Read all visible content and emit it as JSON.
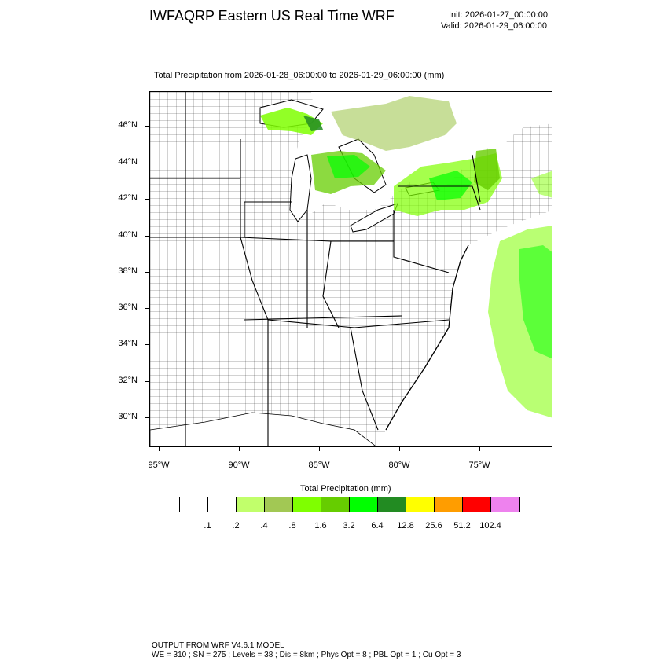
{
  "header": {
    "title": "IWFAQRP Eastern US Real Time WRF",
    "init": "Init: 2026-01-27_00:00:00",
    "valid": "Valid: 2026-01-29_06:00:00"
  },
  "map": {
    "subtitle": "Total Precipitation from 2026-01-28_06:00:00 to 2026-01-29_06:00:00   (mm)",
    "lat_labels": [
      "46°N",
      "44°N",
      "42°N",
      "40°N",
      "38°N",
      "36°N",
      "34°N",
      "32°N",
      "30°N"
    ],
    "lon_labels": [
      "95°W",
      "90°W",
      "85°W",
      "80°W",
      "75°W"
    ],
    "precip_regions": [
      "Upper Peninsula of Michigan",
      "Northern Lower Michigan",
      "Lake Ontario / Upstate New York",
      "Vermont / New Hampshire",
      "Atlantic Ocean off Mid-Atlantic coast"
    ]
  },
  "colorbar": {
    "title": "Total Precipitation  (mm)",
    "labels": [
      ".1",
      ".2",
      ".4",
      ".8",
      "1.6",
      "3.2",
      "6.4",
      "12.8",
      "25.6",
      "51.2",
      "102.4"
    ],
    "colors": [
      "#ffffff",
      "#ffffff",
      "#c1ff6b",
      "#a2c854",
      "#7fff00",
      "#66cd00",
      "#00ff00",
      "#228b22",
      "#ffff00",
      "#ff9d00",
      "#ff0000",
      "#ee82ee"
    ]
  },
  "footer": {
    "line1": "OUTPUT FROM WRF V4.6.1 MODEL",
    "line2": "WE = 310 ; SN = 275 ; Levels = 38 ; Dis = 8km ; Phys Opt = 8 ; PBL Opt = 1 ; Cu Opt = 3"
  }
}
